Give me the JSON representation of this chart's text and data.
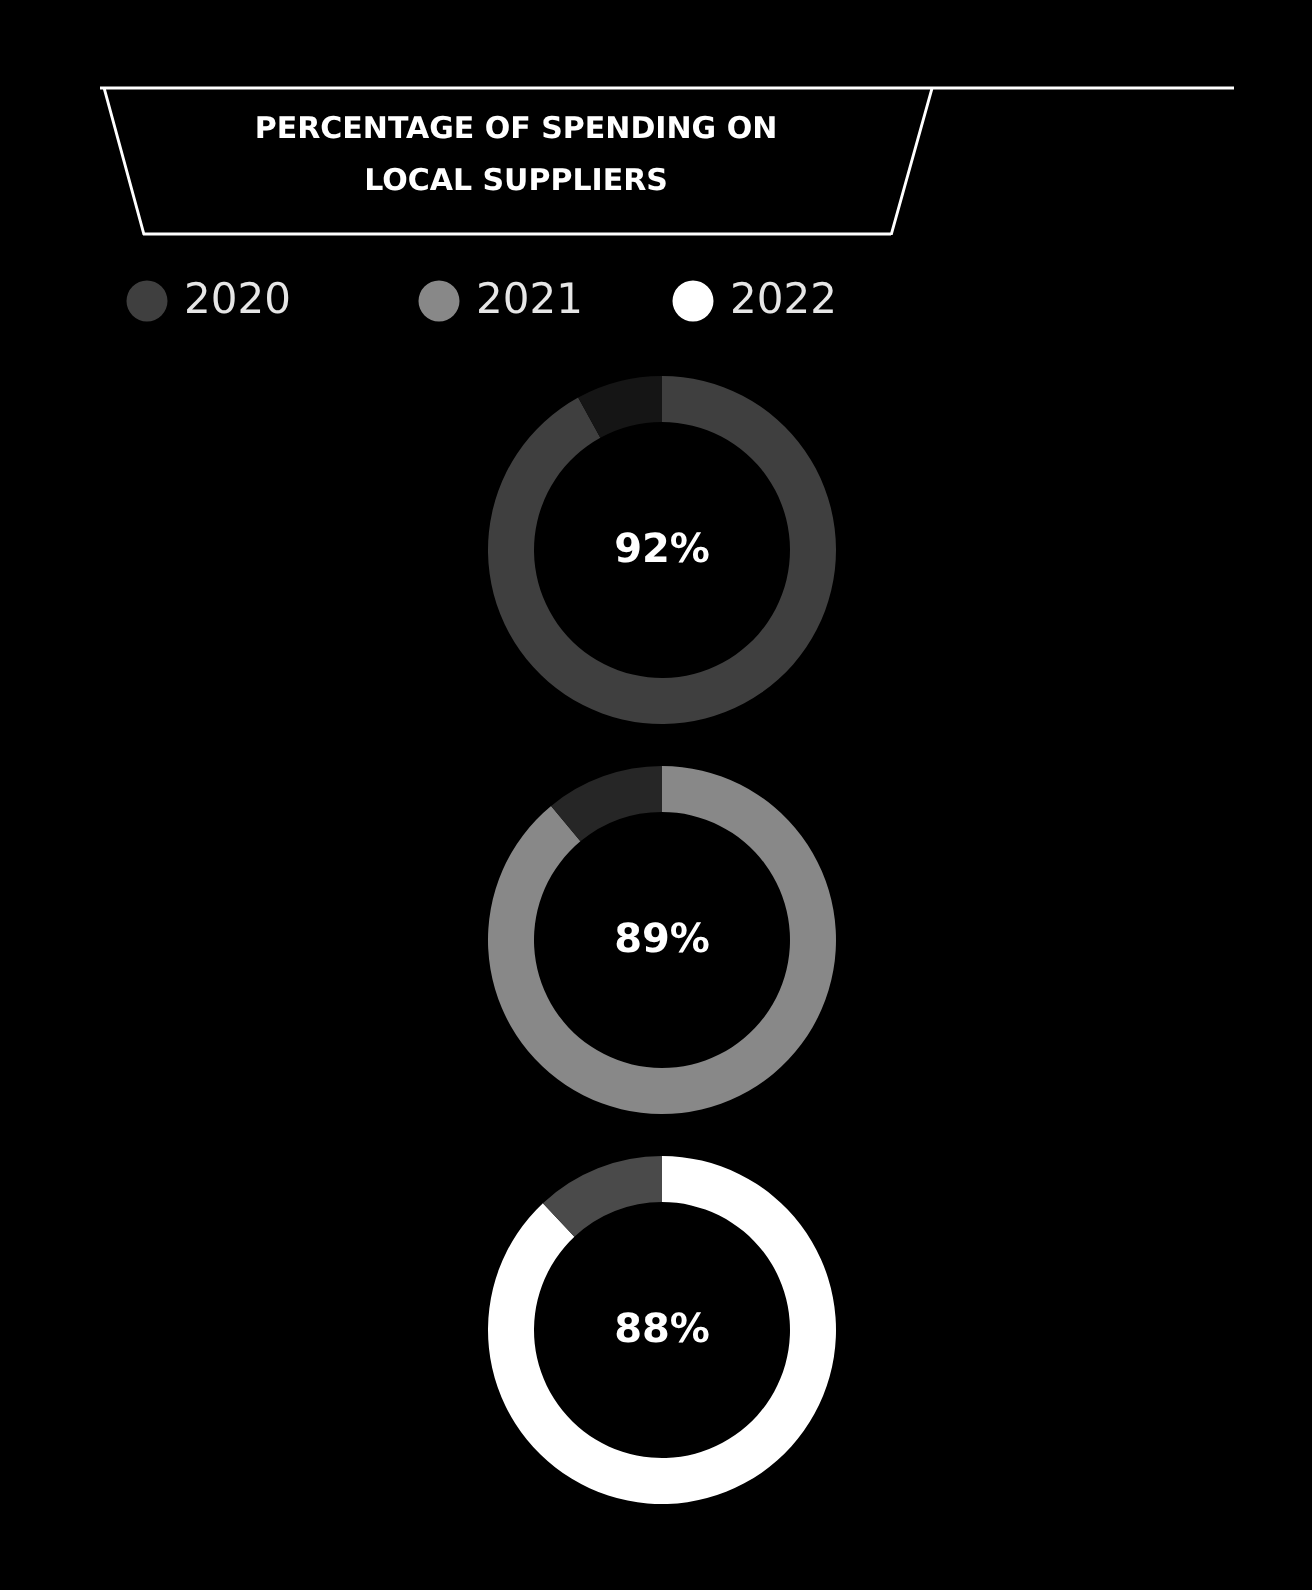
{
  "chart_data": [
    {
      "type": "donut",
      "title": "PERCENTAGE OF SPENDING ON\nLOCAL SUPPLIERS",
      "legend": "top left",
      "categories": [
        null,
        null
      ],
      "colors": [
        "#3f3f3f",
        "#151515"
      ],
      "value_labels": [
        "92%",
        null
      ],
      "series": [
        {
          "name": "2020",
          "color": "#3f3f3f",
          "values": [
            92,
            8
          ]
        }
      ]
    },
    {
      "type": "donut",
      "legend": "top left",
      "categories": [
        null,
        null
      ],
      "colors": [
        "#888888",
        "#262626"
      ],
      "value_labels": [
        "89%",
        null
      ],
      "series": [
        {
          "name": "2021",
          "color": "#888888",
          "values": [
            89,
            11
          ]
        }
      ]
    },
    {
      "type": "donut",
      "legend": "top right",
      "categories": [
        null,
        null
      ],
      "colors": [
        "#ffffff",
        "#4a4a4a"
      ],
      "value_labels": [
        "88%",
        null
      ],
      "series": [
        {
          "name": "2022",
          "color": "#ffffff",
          "values": [
            88,
            12
          ]
        }
      ]
    }
  ]
}
